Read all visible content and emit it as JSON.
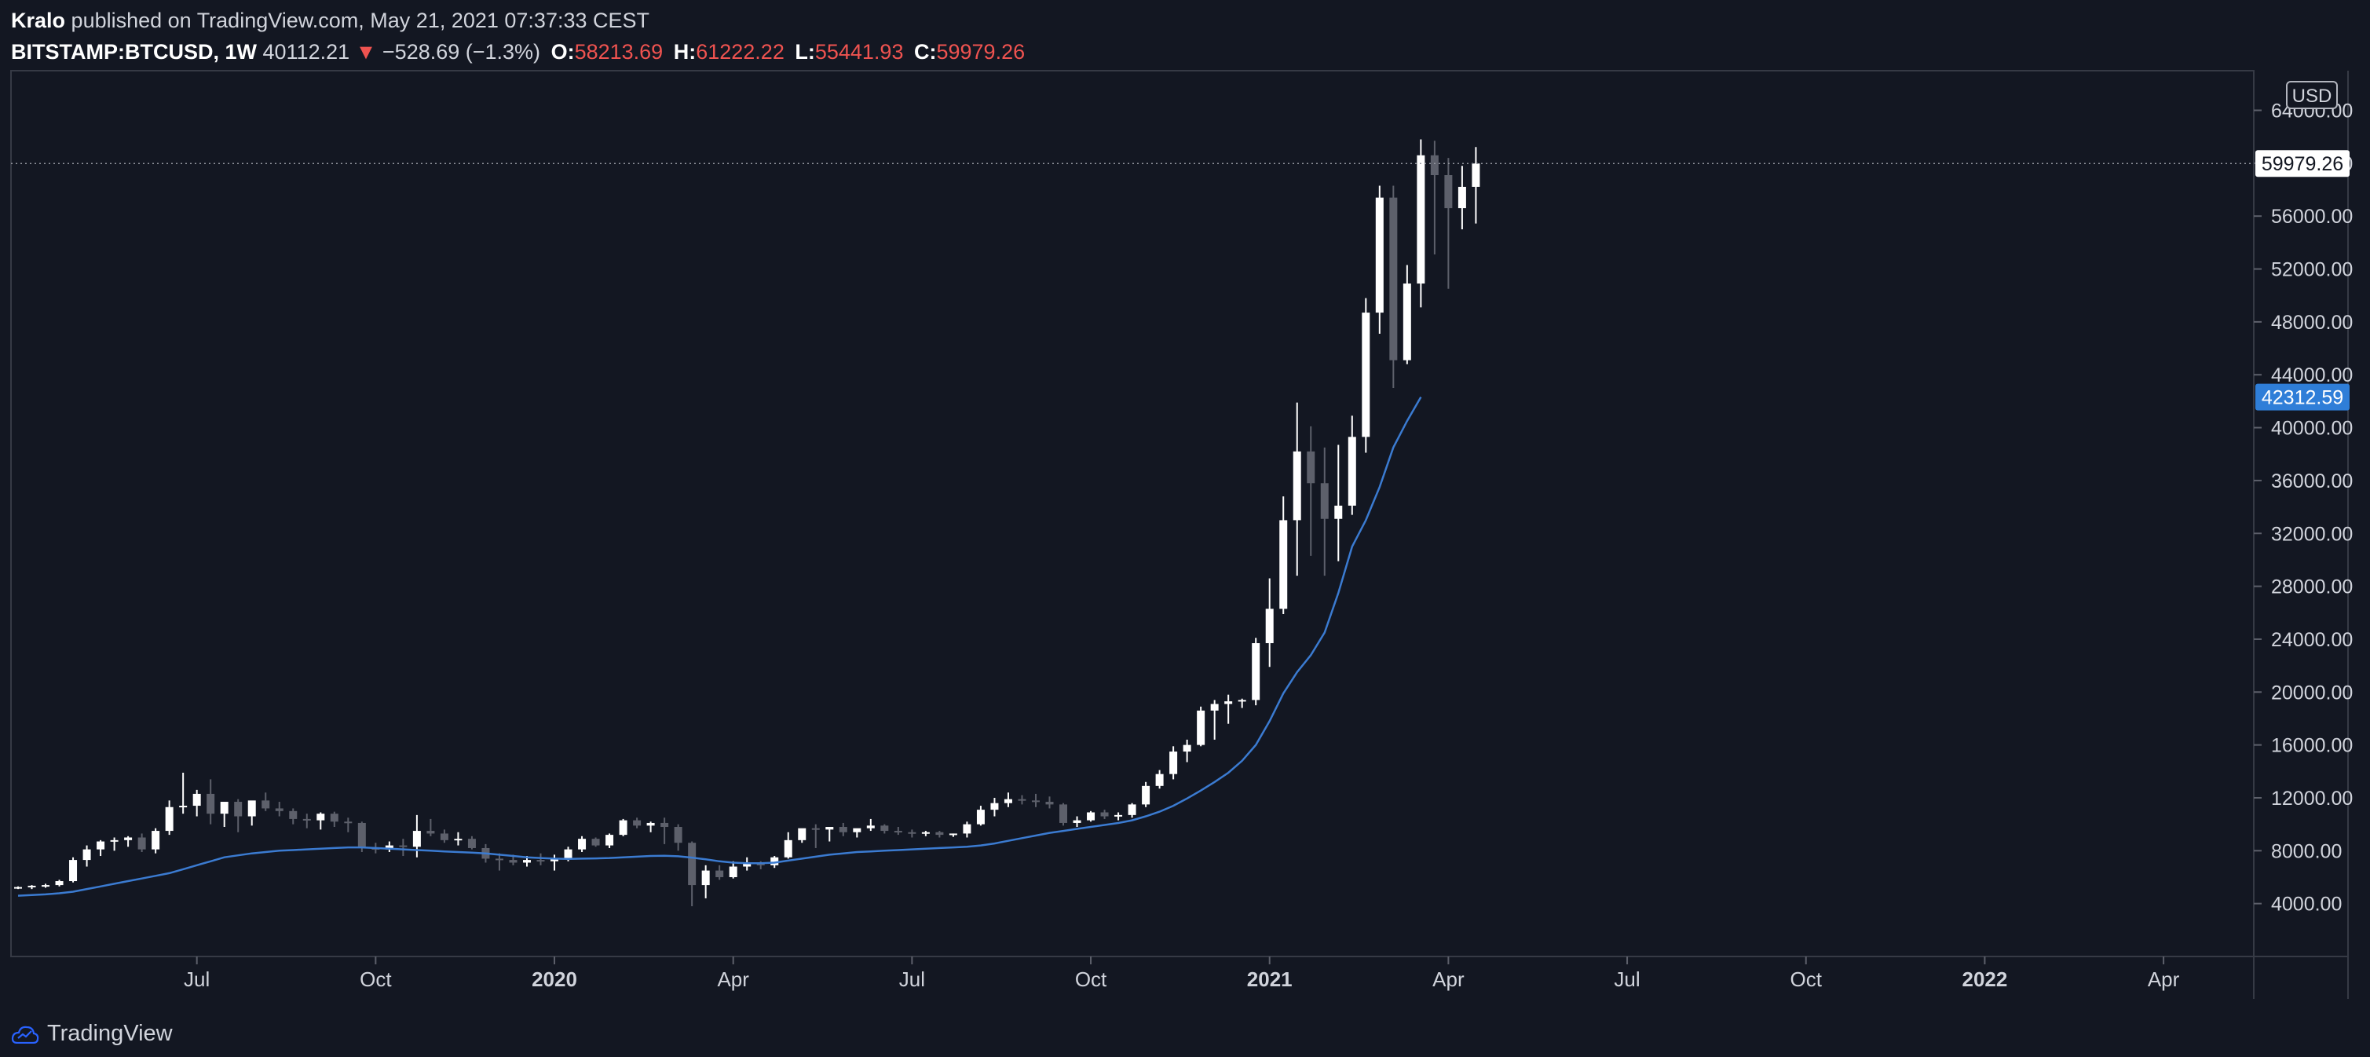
{
  "header": {
    "author": "Kralo",
    "published_text": "published on TradingView.com, May 21, 2021 07:37:33 CEST",
    "symbol": "BITSTAMP:BTCUSD",
    "interval": "1W",
    "last_price": "40112.21",
    "change": "−528.69 (−1.3%)",
    "open_label": "O:",
    "open_value": "58213.69",
    "high_label": "H:",
    "high_value": "61222.22",
    "low_label": "L:",
    "low_value": "55441.93",
    "close_label": "C:",
    "close_value": "59979.26"
  },
  "footer": {
    "brand": "TradingView"
  },
  "colors": {
    "background": "#131722",
    "up_candle": "#ffffff",
    "down_candle": "#5d606b",
    "ma_line": "#3b7bd1",
    "ma_label": "#2f7ed8",
    "price_label_bg": "#ffffff"
  },
  "chart_data": {
    "type": "candlestick",
    "interval": "1W",
    "currency_label": "USD",
    "y_ticks": [
      "4000.00",
      "8000.00",
      "12000.00",
      "16000.00",
      "20000.00",
      "24000.00",
      "28000.00",
      "32000.00",
      "36000.00",
      "40000.00",
      "44000.00",
      "48000.00",
      "52000.00",
      "56000.00",
      "60000.00",
      "64000.00"
    ],
    "ylim": [
      0,
      67000
    ],
    "x_ticks": [
      {
        "label": "Jul",
        "week": 13,
        "bold": false
      },
      {
        "label": "Oct",
        "week": 26,
        "bold": false
      },
      {
        "label": "2020",
        "week": 39,
        "bold": true
      },
      {
        "label": "Apr",
        "week": 52,
        "bold": false
      },
      {
        "label": "Jul",
        "week": 65,
        "bold": false
      },
      {
        "label": "Oct",
        "week": 78,
        "bold": false
      },
      {
        "label": "2021",
        "week": 91,
        "bold": true
      },
      {
        "label": "Apr",
        "week": 104,
        "bold": false
      },
      {
        "label": "Jul",
        "week": 117,
        "bold": false
      },
      {
        "label": "Oct",
        "week": 130,
        "bold": false
      },
      {
        "label": "2022",
        "week": 143,
        "bold": true
      },
      {
        "label": "Apr",
        "week": 156,
        "bold": false
      }
    ],
    "x_range": [
      0,
      158
    ],
    "current_price": {
      "value": 59979.26,
      "label": "59979.26"
    },
    "ma_last": {
      "value": 42312.59,
      "label": "42312.59"
    },
    "candles": [
      [
        5200,
        5300,
        5100,
        5250
      ],
      [
        5250,
        5400,
        5100,
        5350
      ],
      [
        5350,
        5500,
        5200,
        5400
      ],
      [
        5400,
        5800,
        5300,
        5700
      ],
      [
        5700,
        7500,
        5600,
        7300
      ],
      [
        7300,
        8400,
        6800,
        8100
      ],
      [
        8100,
        8800,
        7600,
        8700
      ],
      [
        8700,
        9000,
        8000,
        8800
      ],
      [
        8800,
        9100,
        8300,
        9000
      ],
      [
        9000,
        9300,
        7900,
        8100
      ],
      [
        8100,
        9700,
        7800,
        9500
      ],
      [
        9500,
        11800,
        9200,
        11300
      ],
      [
        11300,
        13900,
        10800,
        11400
      ],
      [
        11400,
        12600,
        10600,
        12300
      ],
      [
        12300,
        13400,
        10000,
        10800
      ],
      [
        10800,
        11500,
        9800,
        11700
      ],
      [
        11700,
        11900,
        9400,
        10600
      ],
      [
        10600,
        11700,
        9900,
        11800
      ],
      [
        11800,
        12400,
        11000,
        11200
      ],
      [
        11200,
        11700,
        10600,
        11000
      ],
      [
        11000,
        11200,
        10000,
        10400
      ],
      [
        10400,
        10800,
        9700,
        10300
      ],
      [
        10300,
        10900,
        9600,
        10800
      ],
      [
        10800,
        10950,
        9800,
        10200
      ],
      [
        10200,
        10500,
        9400,
        10100
      ],
      [
        10100,
        10200,
        7900,
        8200
      ],
      [
        8200,
        8600,
        7800,
        8100
      ],
      [
        8100,
        8700,
        7900,
        8400
      ],
      [
        8400,
        8900,
        7600,
        8300
      ],
      [
        8300,
        10700,
        7500,
        9500
      ],
      [
        9500,
        10400,
        9100,
        9300
      ],
      [
        9300,
        9600,
        8600,
        8800
      ],
      [
        8800,
        9400,
        8400,
        8900
      ],
      [
        8900,
        9100,
        8100,
        8200
      ],
      [
        8200,
        8500,
        7100,
        7400
      ],
      [
        7400,
        7800,
        6500,
        7300
      ],
      [
        7300,
        7700,
        6900,
        7100
      ],
      [
        7100,
        7600,
        6800,
        7300
      ],
      [
        7300,
        7800,
        6900,
        7200
      ],
      [
        7200,
        7700,
        6500,
        7400
      ],
      [
        7400,
        8300,
        7200,
        8100
      ],
      [
        8100,
        9100,
        7900,
        8900
      ],
      [
        8900,
        9000,
        8300,
        8400
      ],
      [
        8400,
        9300,
        8200,
        9200
      ],
      [
        9200,
        10400,
        9100,
        10300
      ],
      [
        10300,
        10500,
        9700,
        9900
      ],
      [
        9900,
        10200,
        9400,
        10100
      ],
      [
        10100,
        10500,
        8500,
        9800
      ],
      [
        9800,
        10000,
        8000,
        8600
      ],
      [
        8600,
        8700,
        3800,
        5400
      ],
      [
        5400,
        6900,
        4400,
        6500
      ],
      [
        6500,
        6900,
        5800,
        6000
      ],
      [
        6000,
        7200,
        5900,
        6800
      ],
      [
        6800,
        7500,
        6500,
        7100
      ],
      [
        7100,
        7200,
        6600,
        6900
      ],
      [
        6900,
        7600,
        6700,
        7500
      ],
      [
        7500,
        9400,
        7400,
        8800
      ],
      [
        8800,
        9300,
        8600,
        9700
      ],
      [
        9700,
        10000,
        8200,
        9600
      ],
      [
        9600,
        9800,
        8700,
        9800
      ],
      [
        9800,
        10100,
        9100,
        9400
      ],
      [
        9400,
        9500,
        9000,
        9700
      ],
      [
        9700,
        10400,
        9500,
        9900
      ],
      [
        9900,
        10000,
        9300,
        9500
      ],
      [
        9500,
        9800,
        9200,
        9400
      ],
      [
        9400,
        9600,
        9000,
        9300
      ],
      [
        9300,
        9500,
        9100,
        9400
      ],
      [
        9400,
        9500,
        9000,
        9200
      ],
      [
        9200,
        9300,
        9050,
        9300
      ],
      [
        9300,
        10200,
        9000,
        10000
      ],
      [
        10000,
        11400,
        9900,
        11100
      ],
      [
        11100,
        12000,
        10600,
        11600
      ],
      [
        11600,
        12400,
        11300,
        11900
      ],
      [
        11900,
        12200,
        11500,
        11800
      ],
      [
        11800,
        12300,
        11300,
        11700
      ],
      [
        11700,
        12100,
        11200,
        11500
      ],
      [
        11500,
        11600,
        9900,
        10100
      ],
      [
        10100,
        10600,
        9800,
        10300
      ],
      [
        10300,
        11000,
        10200,
        10900
      ],
      [
        10900,
        11100,
        10400,
        10600
      ],
      [
        10600,
        10900,
        10300,
        10700
      ],
      [
        10700,
        11600,
        10500,
        11500
      ],
      [
        11500,
        13200,
        11300,
        12900
      ],
      [
        12900,
        14100,
        12700,
        13800
      ],
      [
        13800,
        15900,
        13400,
        15500
      ],
      [
        15500,
        16400,
        14700,
        16000
      ],
      [
        16000,
        18900,
        15900,
        18600
      ],
      [
        18600,
        19400,
        16400,
        19100
      ],
      [
        19100,
        19800,
        17600,
        19300
      ],
      [
        19300,
        19500,
        18800,
        19400
      ],
      [
        19400,
        24100,
        19000,
        23700
      ],
      [
        23700,
        28600,
        21900,
        26300
      ],
      [
        26300,
        34800,
        25900,
        33000
      ],
      [
        33000,
        41900,
        28800,
        38200
      ],
      [
        38200,
        40100,
        30300,
        35800
      ],
      [
        35800,
        38500,
        28800,
        33100
      ],
      [
        33100,
        38700,
        29900,
        34100
      ],
      [
        34100,
        40900,
        33400,
        39300
      ],
      [
        39300,
        49800,
        38100,
        48700
      ],
      [
        48700,
        58300,
        47100,
        57400
      ],
      [
        57400,
        58300,
        43000,
        45100
      ],
      [
        45100,
        52300,
        44800,
        50900
      ],
      [
        50900,
        61800,
        49100,
        60600
      ],
      [
        60600,
        61700,
        53100,
        59100
      ],
      [
        59100,
        60400,
        50500,
        56600
      ],
      [
        56600,
        59800,
        55000,
        58213.69
      ],
      [
        58213.69,
        61222.22,
        55441.93,
        59979.26
      ]
    ],
    "ma_values": [
      4600,
      4650,
      4700,
      4780,
      4900,
      5100,
      5300,
      5500,
      5700,
      5900,
      6100,
      6300,
      6600,
      6900,
      7200,
      7500,
      7650,
      7800,
      7900,
      8000,
      8050,
      8100,
      8150,
      8200,
      8250,
      8250,
      8200,
      8150,
      8100,
      8050,
      8000,
      7950,
      7900,
      7850,
      7800,
      7700,
      7600,
      7500,
      7450,
      7400,
      7380,
      7400,
      7420,
      7450,
      7500,
      7550,
      7600,
      7620,
      7580,
      7480,
      7350,
      7200,
      7100,
      7050,
      7050,
      7100,
      7250,
      7400,
      7550,
      7700,
      7800,
      7900,
      7950,
      8000,
      8050,
      8100,
      8150,
      8200,
      8250,
      8300,
      8400,
      8550,
      8750,
      8950,
      9150,
      9350,
      9500,
      9650,
      9800,
      9950,
      10100,
      10300,
      10600,
      10950,
      11400,
      11950,
      12550,
      13200,
      13900,
      14800,
      16000,
      17800,
      19900,
      21500,
      22800,
      24500,
      27500,
      31000,
      33000,
      35500,
      38500,
      40500,
      42312.59
    ]
  }
}
